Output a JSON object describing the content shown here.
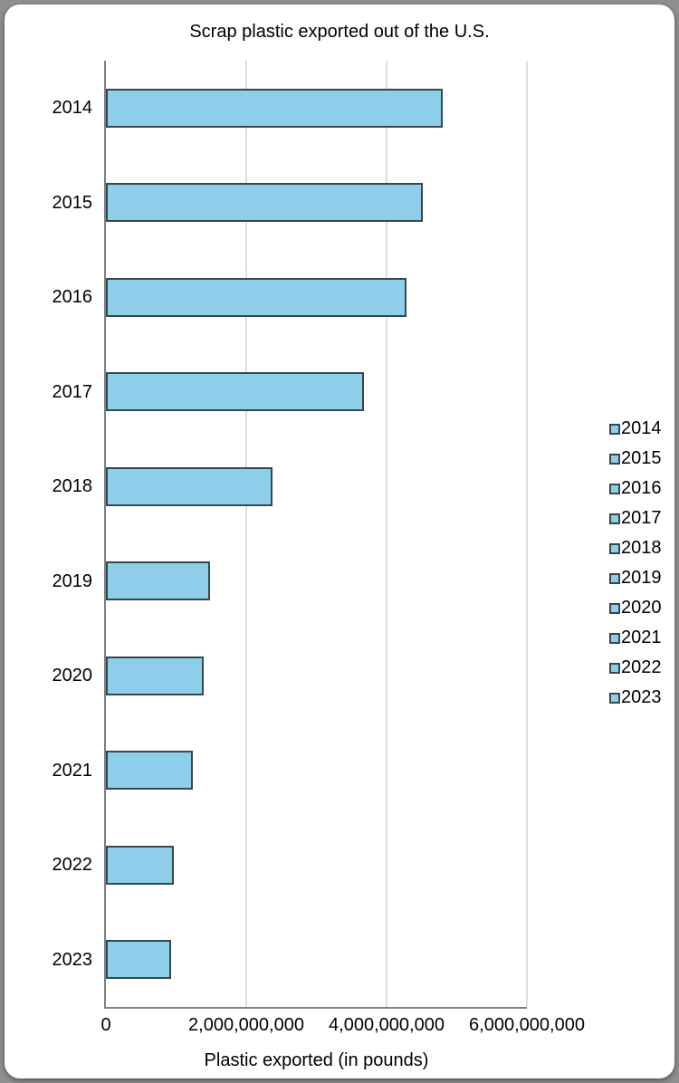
{
  "window": {
    "background_color": "#8F8F8F",
    "card_color": "#FFFFFF"
  },
  "chart_data": {
    "type": "bar",
    "orientation": "horizontal",
    "title": "Scrap plastic exported out of the U.S.",
    "xlabel": "Plastic exported (in pounds)",
    "ylabel": "",
    "categories": [
      "2014",
      "2015",
      "2016",
      "2017",
      "2018",
      "2019",
      "2020",
      "2021",
      "2022",
      "2023"
    ],
    "values": [
      4800000000,
      4520000000,
      4280000000,
      3680000000,
      2380000000,
      1480000000,
      1390000000,
      1240000000,
      970000000,
      930000000
    ],
    "xlim": [
      0,
      6000000000
    ],
    "x_ticks": [
      0,
      2000000000,
      4000000000,
      6000000000
    ],
    "x_tick_labels": [
      "0",
      "2,000,000,000",
      "4,000,000,000",
      "6,000,000,000"
    ],
    "grid": true,
    "legend": {
      "position": "right",
      "entries": [
        "2014",
        "2015",
        "2016",
        "2017",
        "2018",
        "2019",
        "2020",
        "2021",
        "2022",
        "2023"
      ]
    },
    "colors": {
      "bar_fill": "#8DCEEB",
      "bar_border": "#37474F",
      "gridline": "#DEDEDE",
      "axis": "#7F7F7F",
      "text": "#000000"
    }
  }
}
